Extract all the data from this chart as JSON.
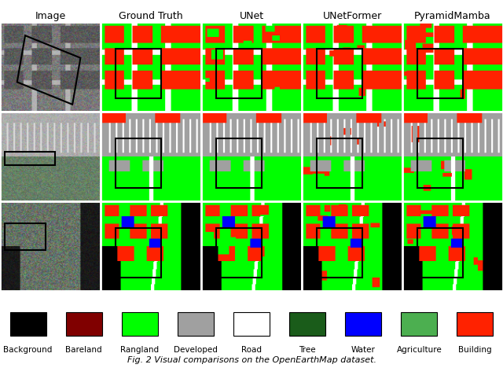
{
  "title": "Fig. 2 Visual comparisons on the OpenEarthMap dataset.",
  "col_labels": [
    "Image",
    "Ground Truth",
    "UNet",
    "UNetFormer",
    "PyramidMamba"
  ],
  "legend_items": [
    {
      "label": "Background",
      "color": "#000000"
    },
    {
      "label": "Bareland",
      "color": "#800000"
    },
    {
      "label": "Rangland",
      "color": "#00ff00"
    },
    {
      "label": "Developed",
      "color": "#a0a0a0"
    },
    {
      "label": "Road",
      "color": "#ffffff"
    },
    {
      "label": "Tree",
      "color": "#1a5c1a"
    },
    {
      "label": "Water",
      "color": "#0000ff"
    },
    {
      "label": "Agriculture",
      "color": "#4caf50"
    },
    {
      "label": "Building",
      "color": "#ff2200"
    }
  ],
  "background_color": "#ffffff",
  "col_label_fontsize": 9,
  "legend_label_fontsize": 7.5,
  "title_fontsize": 8,
  "figure_width": 6.4,
  "figure_height": 4.68
}
